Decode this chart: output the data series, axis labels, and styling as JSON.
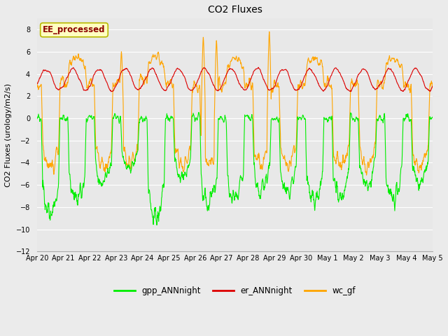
{
  "title": "CO2 Fluxes",
  "ylabel": "CO2 Fluxes (urology/m2/s)",
  "ylim": [
    -12,
    9
  ],
  "yticks": [
    -12,
    -10,
    -8,
    -6,
    -4,
    -2,
    0,
    2,
    4,
    6,
    8
  ],
  "fig_bg_color": "#ebebeb",
  "plot_bg_color": "#e8e8e8",
  "legend_text": "EE_processed",
  "legend_text_color": "#8b0000",
  "legend_box_bg": "#ffffc0",
  "legend_box_edge": "#b8b800",
  "gpp_color": "#00ee00",
  "er_color": "#dd0000",
  "wc_color": "#ffa500",
  "line_width": 0.8,
  "n_points": 1500,
  "date_end": 15,
  "x_tick_labels": [
    "Apr 20",
    "Apr 21",
    "Apr 22",
    "Apr 23",
    "Apr 24",
    "Apr 25",
    "Apr 26",
    "Apr 27",
    "Apr 28",
    "Apr 29",
    "Apr 30",
    "May 1",
    "May 2",
    "May 3",
    "May 4",
    "May 5"
  ],
  "legend_entries": [
    "gpp_ANNnight",
    "er_ANNnight",
    "wc_gf"
  ],
  "legend_colors": [
    "#00ee00",
    "#dd0000",
    "#ffa500"
  ],
  "title_fontsize": 10,
  "axis_fontsize": 8,
  "tick_fontsize": 7
}
